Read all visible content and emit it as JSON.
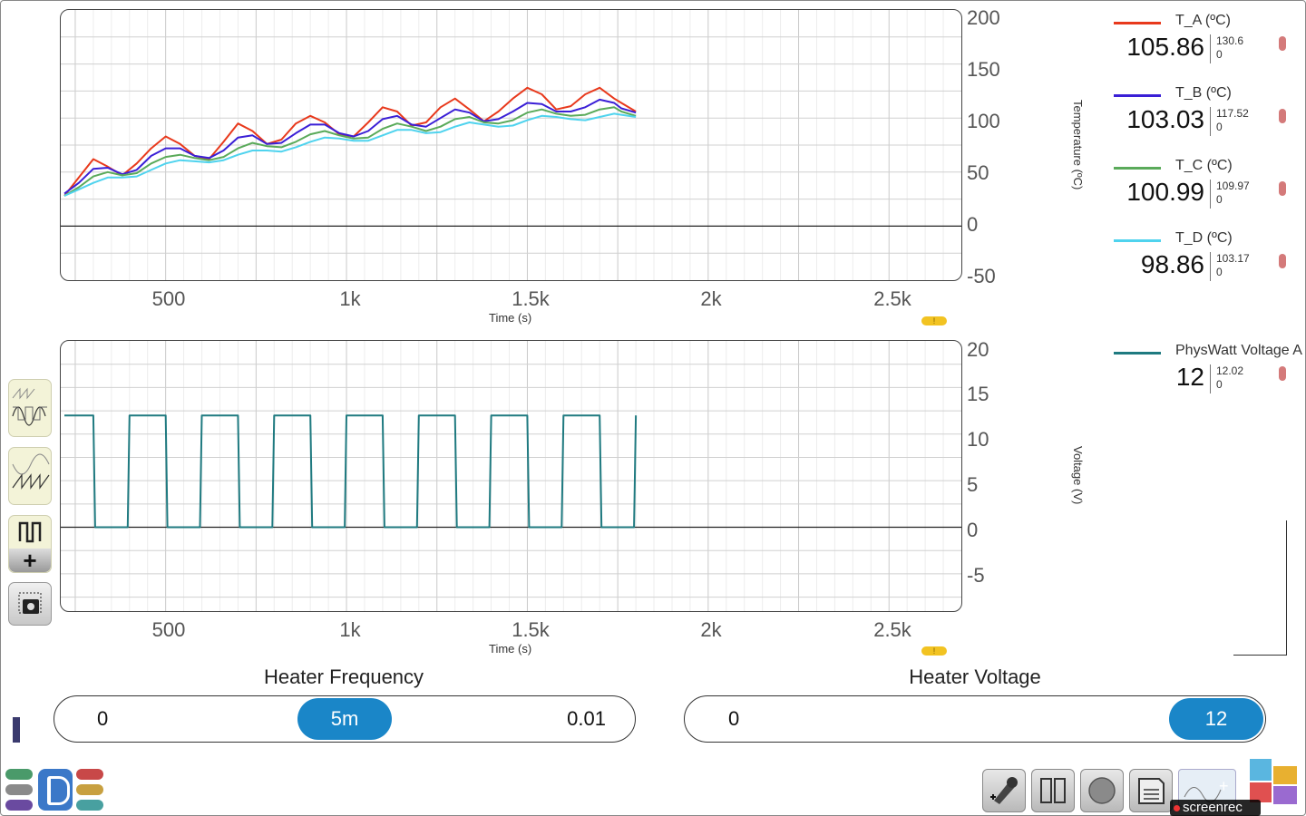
{
  "top_chart": {
    "xlabel": "Time (s)",
    "ylabel": "Temperature (ºC)",
    "x_ticks": [
      "500",
      "1k",
      "1.5k",
      "2k",
      "2.5k"
    ],
    "y_ticks": [
      "200",
      "150",
      "100",
      "50",
      "0",
      "-50"
    ]
  },
  "bottom_chart": {
    "xlabel": "Time (s)",
    "ylabel": "Voltage (V)",
    "x_ticks": [
      "500",
      "1k",
      "1.5k",
      "2k",
      "2.5k"
    ],
    "y_ticks": [
      "20",
      "15",
      "10",
      "5",
      "0",
      "-5"
    ]
  },
  "legend": [
    {
      "name": "T_A (ºC)",
      "value": "105.86",
      "max": "130.6",
      "min": "0",
      "color": "#e8391c"
    },
    {
      "name": "T_B (ºC)",
      "value": "103.03",
      "max": "117.52",
      "min": "0",
      "color": "#3a1fd6"
    },
    {
      "name": "T_C (ºC)",
      "value": "100.99",
      "max": "109.97",
      "min": "0",
      "color": "#5aaa5a"
    },
    {
      "name": "T_D (ºC)",
      "value": "98.86",
      "max": "103.17",
      "min": "0",
      "color": "#4fd3ee"
    },
    {
      "name": "PhysWatt Voltage A",
      "value": "12",
      "max": "12.02",
      "min": "0",
      "color": "#1f7a80"
    }
  ],
  "warning_glyph": "!",
  "sliders": {
    "frequency": {
      "title": "Heater Frequency",
      "min": "0",
      "max": "0.01",
      "value": "5m"
    },
    "voltage": {
      "title": "Heater Voltage",
      "min": "0",
      "value": "12"
    }
  },
  "watermark": "screenrec",
  "icons": [
    "overlay-sine-square-icon",
    "sawtooth-wave-icon",
    "square-wave-icon",
    "add-icon",
    "camera-snapshot-icon",
    "app-logo-icon",
    "settings-tools-icon",
    "pause-icon",
    "record-icon",
    "save-icon",
    "add-graph-icon",
    "puzzle-icon"
  ],
  "chart_data": [
    {
      "type": "line",
      "xlabel": "Time (s)",
      "ylabel": "Temperature (ºC)",
      "xlim": [
        210,
        2700
      ],
      "ylim": [
        -50,
        200
      ],
      "series": [
        {
          "name": "T_A (ºC)",
          "color": "#e8391c",
          "x": [
            220,
            260,
            300,
            340,
            380,
            420,
            460,
            500,
            540,
            580,
            620,
            660,
            700,
            740,
            780,
            820,
            860,
            900,
            940,
            980,
            1020,
            1060,
            1100,
            1140,
            1180,
            1220,
            1260,
            1300,
            1340,
            1380,
            1420,
            1460,
            1500,
            1540,
            1580,
            1620,
            1660,
            1700,
            1740,
            1760,
            1800
          ],
          "y": [
            28,
            45,
            62,
            55,
            47,
            58,
            72,
            83,
            76,
            65,
            62,
            78,
            95,
            88,
            76,
            80,
            95,
            102,
            96,
            85,
            83,
            96,
            110,
            106,
            93,
            96,
            110,
            118,
            108,
            97,
            106,
            118,
            128,
            122,
            108,
            111,
            122,
            128,
            118,
            114,
            106
          ]
        },
        {
          "name": "T_B (ºC)",
          "color": "#3a1fd6",
          "x": [
            220,
            260,
            300,
            340,
            380,
            420,
            460,
            500,
            540,
            580,
            620,
            660,
            700,
            740,
            780,
            820,
            860,
            900,
            940,
            980,
            1020,
            1060,
            1100,
            1140,
            1180,
            1220,
            1260,
            1300,
            1340,
            1380,
            1420,
            1460,
            1500,
            1540,
            1580,
            1620,
            1660,
            1700,
            1740,
            1760,
            1800
          ],
          "y": [
            30,
            40,
            53,
            54,
            48,
            52,
            65,
            72,
            72,
            65,
            63,
            70,
            82,
            84,
            76,
            77,
            86,
            94,
            94,
            86,
            83,
            88,
            99,
            102,
            94,
            92,
            100,
            108,
            105,
            97,
            99,
            106,
            114,
            113,
            106,
            106,
            110,
            117,
            114,
            109,
            105
          ]
        },
        {
          "name": "T_C (ºC)",
          "color": "#5aaa5a",
          "x": [
            220,
            260,
            300,
            340,
            380,
            420,
            460,
            500,
            540,
            580,
            620,
            660,
            700,
            740,
            780,
            820,
            860,
            900,
            940,
            980,
            1020,
            1060,
            1100,
            1140,
            1180,
            1220,
            1260,
            1300,
            1340,
            1380,
            1420,
            1460,
            1500,
            1540,
            1580,
            1620,
            1660,
            1700,
            1740,
            1760,
            1800
          ],
          "y": [
            28,
            36,
            46,
            50,
            47,
            49,
            58,
            64,
            66,
            63,
            61,
            64,
            72,
            77,
            74,
            73,
            78,
            85,
            88,
            84,
            81,
            82,
            90,
            95,
            92,
            88,
            92,
            99,
            101,
            96,
            95,
            98,
            105,
            108,
            104,
            102,
            103,
            108,
            110,
            106,
            102
          ]
        },
        {
          "name": "T_D (ºC)",
          "color": "#4fd3ee",
          "x": [
            220,
            260,
            300,
            340,
            380,
            420,
            460,
            500,
            540,
            580,
            620,
            660,
            700,
            740,
            780,
            820,
            860,
            900,
            940,
            980,
            1020,
            1060,
            1100,
            1140,
            1180,
            1220,
            1260,
            1300,
            1340,
            1380,
            1420,
            1460,
            1500,
            1540,
            1580,
            1620,
            1660,
            1700,
            1740,
            1760,
            1800
          ],
          "y": [
            28,
            34,
            40,
            45,
            45,
            46,
            52,
            58,
            61,
            60,
            59,
            61,
            66,
            70,
            70,
            69,
            73,
            78,
            82,
            81,
            79,
            79,
            84,
            89,
            89,
            86,
            87,
            92,
            96,
            94,
            92,
            93,
            98,
            102,
            101,
            99,
            98,
            101,
            104,
            103,
            101
          ]
        }
      ]
    },
    {
      "type": "line",
      "xlabel": "Time (s)",
      "ylabel": "Voltage (V)",
      "xlim": [
        210,
        2700
      ],
      "ylim": [
        -9,
        20
      ],
      "series": [
        {
          "name": "PhysWatt Voltage A",
          "color": "#1f7a80",
          "x": [
            220,
            300,
            305,
            395,
            400,
            500,
            505,
            595,
            600,
            700,
            705,
            795,
            800,
            900,
            905,
            995,
            1000,
            1100,
            1105,
            1195,
            1200,
            1300,
            1305,
            1395,
            1400,
            1500,
            1505,
            1595,
            1600,
            1700,
            1705,
            1795,
            1800
          ],
          "y": [
            12,
            12,
            0,
            0,
            12,
            12,
            0,
            0,
            12,
            12,
            0,
            0,
            12,
            12,
            0,
            0,
            12,
            12,
            0,
            0,
            12,
            12,
            0,
            0,
            12,
            12,
            0,
            0,
            12,
            12,
            0,
            0,
            12
          ]
        }
      ]
    }
  ]
}
